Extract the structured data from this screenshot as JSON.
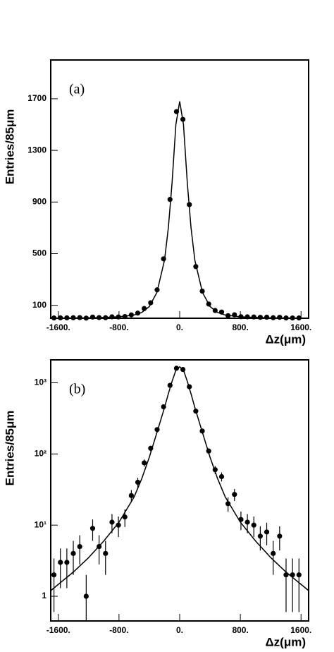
{
  "chart_data": [
    {
      "type": "scatter",
      "annotation": "(a)",
      "x_label": "Δz(μm)",
      "y_label": "Entries/85μm",
      "color": "#000000",
      "log_y": false,
      "xlim": [
        -1700,
        1700
      ],
      "ylim": [
        0,
        2000
      ],
      "xticks": [
        {
          "value": -1600,
          "label": "-1600."
        },
        {
          "value": -800,
          "label": "-800."
        },
        {
          "value": 0,
          "label": "0."
        },
        {
          "value": 800,
          "label": "800."
        },
        {
          "value": 1600,
          "label": "1600."
        }
      ],
      "yticks": [
        100,
        500,
        900,
        1300,
        1700
      ],
      "x": [
        -1657.5,
        -1572.5,
        -1487.5,
        -1402.5,
        -1317.5,
        -1232.5,
        -1147.5,
        -1062.5,
        -977.5,
        -892.5,
        -807.5,
        -722.5,
        -637.5,
        -552.5,
        -467.5,
        -382.5,
        -297.5,
        -212.5,
        -127.5,
        -42.5,
        42.5,
        127.5,
        212.5,
        297.5,
        382.5,
        467.5,
        552.5,
        637.5,
        722.5,
        807.5,
        892.5,
        977.5,
        1062.5,
        1147.5,
        1232.5,
        1317.5,
        1402.5,
        1487.5,
        1572.5
      ],
      "values": [
        2,
        3,
        3,
        4,
        5,
        1,
        9,
        5,
        4,
        11,
        10,
        13,
        26,
        40,
        75,
        120,
        220,
        460,
        920,
        1600,
        1540,
        880,
        400,
        210,
        110,
        60,
        48,
        20,
        27,
        12,
        11,
        10,
        7,
        8,
        4,
        7,
        2,
        2,
        2
      ],
      "fit": {
        "x": [
          -1700,
          -1400,
          -1200,
          -1000,
          -800,
          -600,
          -500,
          -400,
          -300,
          -200,
          -150,
          -100,
          -50,
          0,
          50,
          100,
          150,
          200,
          300,
          400,
          500,
          600,
          800,
          1000,
          1200,
          1400,
          1700
        ],
        "values": [
          1.2,
          2.2,
          3.5,
          6,
          11,
          25,
          45,
          90,
          200,
          450,
          700,
          1050,
          1500,
          1680,
          1500,
          1050,
          700,
          450,
          200,
          90,
          45,
          25,
          11,
          6,
          3.5,
          2.2,
          1.2
        ]
      }
    },
    {
      "type": "scatter",
      "annotation": "(b)",
      "x_label": "Δz(μm)",
      "y_label": "Entries/85μm",
      "color": "#000000",
      "log_y": true,
      "xlim": [
        -1700,
        1700
      ],
      "ylim": [
        0.45,
        2100
      ],
      "xticks": [
        {
          "value": -1600,
          "label": "-1600."
        },
        {
          "value": -800,
          "label": "-800."
        },
        {
          "value": 0,
          "label": "0."
        },
        {
          "value": 800,
          "label": "800."
        },
        {
          "value": 1600,
          "label": "1600."
        }
      ],
      "yticks": [
        1,
        {
          "value": 10,
          "label": "10¹"
        },
        {
          "value": 100,
          "label": "10²"
        },
        {
          "value": 1000,
          "label": "10³"
        }
      ],
      "x": [
        -1657.5,
        -1572.5,
        -1487.5,
        -1402.5,
        -1317.5,
        -1232.5,
        -1147.5,
        -1062.5,
        -977.5,
        -892.5,
        -807.5,
        -722.5,
        -637.5,
        -552.5,
        -467.5,
        -382.5,
        -297.5,
        -212.5,
        -127.5,
        -42.5,
        42.5,
        127.5,
        212.5,
        297.5,
        382.5,
        467.5,
        552.5,
        637.5,
        722.5,
        807.5,
        892.5,
        977.5,
        1062.5,
        1147.5,
        1232.5,
        1317.5,
        1402.5,
        1487.5,
        1572.5
      ],
      "values": [
        2,
        3,
        3,
        4,
        5,
        1,
        9,
        5,
        4,
        11,
        10,
        13,
        26,
        40,
        75,
        120,
        220,
        460,
        920,
        1600,
        1540,
        880,
        400,
        210,
        110,
        60,
        48,
        20,
        27,
        12,
        11,
        10,
        7,
        8,
        4,
        7,
        2,
        2,
        2
      ],
      "errors": [
        1.4,
        1.7,
        1.7,
        2,
        2.2,
        1,
        3,
        2.2,
        2,
        3.3,
        3.2,
        3.6,
        5.1,
        6.3,
        8.7,
        11,
        15,
        21,
        30,
        40,
        39,
        30,
        20,
        14.5,
        10.5,
        7.7,
        6.9,
        4.5,
        5.2,
        3.5,
        3.3,
        3.2,
        2.6,
        2.8,
        2,
        2.6,
        1.4,
        1.4,
        1.4
      ],
      "fit": {
        "x": [
          -1700,
          -1400,
          -1200,
          -1000,
          -800,
          -600,
          -500,
          -400,
          -300,
          -200,
          -150,
          -100,
          -50,
          0,
          50,
          100,
          150,
          200,
          300,
          400,
          500,
          600,
          800,
          1000,
          1200,
          1400,
          1700
        ],
        "values": [
          1.2,
          2.2,
          3.5,
          6,
          11,
          25,
          45,
          90,
          200,
          450,
          700,
          1050,
          1500,
          1680,
          1500,
          1050,
          700,
          450,
          200,
          90,
          45,
          25,
          11,
          6,
          3.5,
          2.2,
          1.2
        ]
      }
    }
  ]
}
